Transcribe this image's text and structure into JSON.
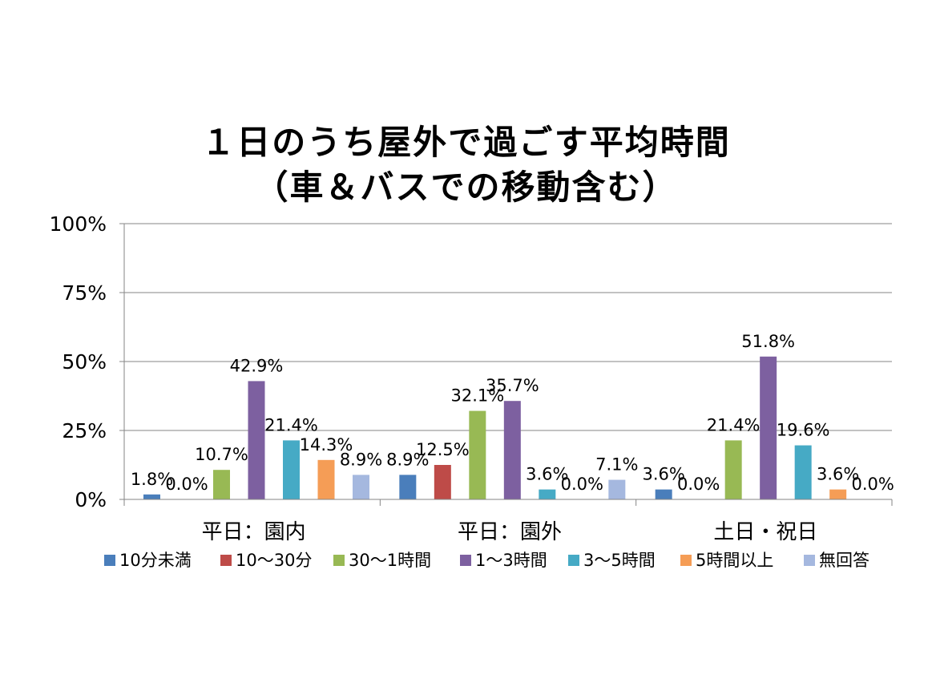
{
  "chart_data": {
    "type": "bar",
    "title": [
      "１日のうち屋外で過ごす平均時間",
      "（車＆バスでの移動含む）"
    ],
    "categories": [
      "平日：園内",
      "平日：園外",
      "土日・祝日"
    ],
    "series": [
      {
        "name": "10分未満",
        "color": "#4a7ebb",
        "values": [
          1.8,
          8.9,
          3.6
        ]
      },
      {
        "name": "10〜30分",
        "color": "#be4b48",
        "values": [
          0.0,
          12.5,
          null
        ]
      },
      {
        "name": "30〜1時間",
        "color": "#98b954",
        "values": [
          10.7,
          32.1,
          21.4
        ]
      },
      {
        "name": "1〜3時間",
        "color": "#7d60a0",
        "values": [
          42.9,
          35.7,
          51.8
        ]
      },
      {
        "name": "3〜5時間",
        "color": "#46aac5",
        "values": [
          21.4,
          3.6,
          19.6
        ]
      },
      {
        "name": "5時間以上",
        "color": "#f59d56",
        "values": [
          14.3,
          0.0,
          3.6
        ]
      },
      {
        "name": "無回答",
        "color": "#a5b8df",
        "values": [
          8.9,
          7.1,
          0.0
        ]
      }
    ],
    "data_labels": [
      [
        "1.8%",
        "0.0%",
        "10.7%",
        "42.9%",
        "21.4%",
        "14.3%",
        "8.9%"
      ],
      [
        "8.9%",
        "12.5%",
        "32.1%",
        "35.7%",
        "3.6%",
        "0.0%",
        "7.1%"
      ],
      [
        "3.6%",
        "0.0%",
        "21.4%",
        "51.8%",
        "19.6%",
        "3.6%",
        "0.0%"
      ]
    ],
    "y_ticks": [
      "0%",
      "25%",
      "50%",
      "75%",
      "100%"
    ],
    "ylim": [
      0,
      100
    ],
    "grid": true,
    "legend_position": "bottom"
  }
}
